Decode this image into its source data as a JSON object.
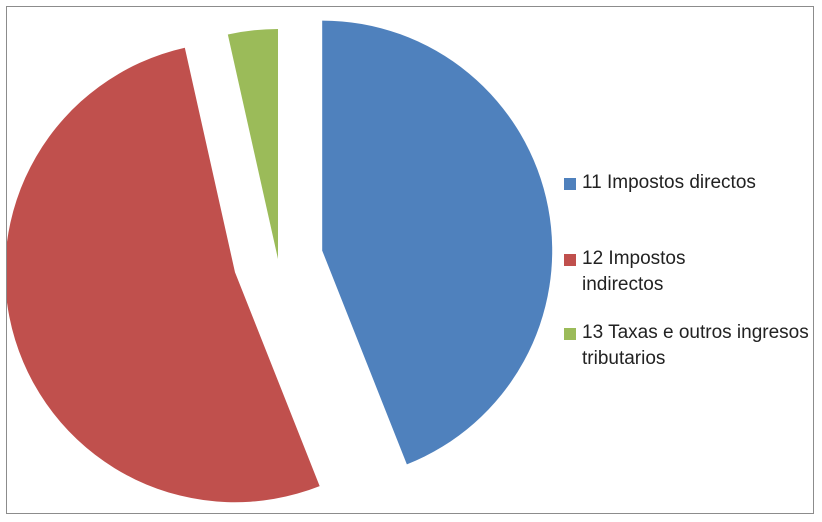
{
  "chart_data": {
    "type": "pie",
    "exploded": true,
    "start_angle_deg": 0,
    "direction": "clockwise",
    "slices": [
      {
        "label": "11 Impostos directos",
        "value": 44,
        "color": "#4F81BD"
      },
      {
        "label": "12 Impostos indirectos",
        "value": 52.5,
        "color": "#C0504D"
      },
      {
        "label": "13 Taxas e outros ingresos tributarios",
        "value": 3.5,
        "color": "#9BBB59"
      }
    ],
    "legend": {
      "position": "right",
      "items": [
        {
          "text": "11 Impostos directos",
          "color": "#4F81BD"
        },
        {
          "text": "12 Impostos indirectos",
          "color": "#C0504D"
        },
        {
          "text": "13 Taxas e outros ingresos tributarios",
          "color": "#9BBB59"
        }
      ]
    }
  }
}
